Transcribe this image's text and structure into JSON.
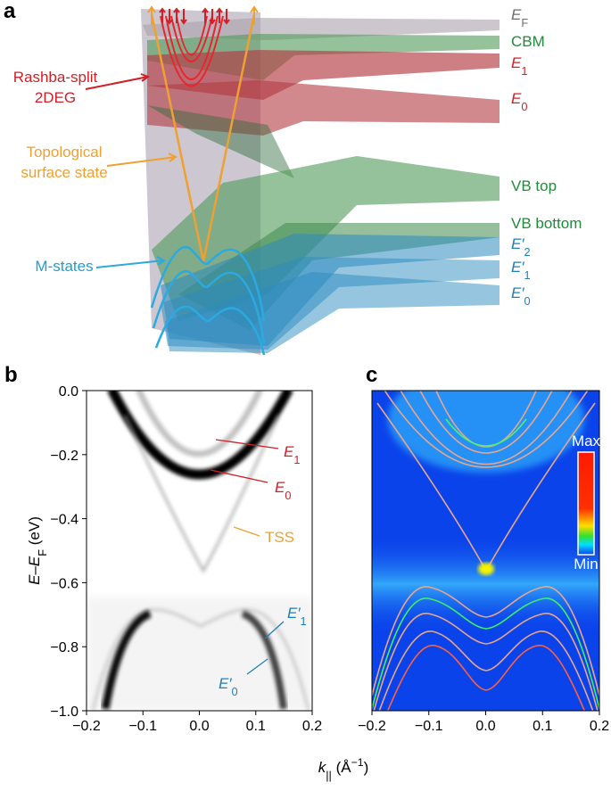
{
  "panel_a": {
    "letter": "a",
    "right_labels": [
      {
        "segments": [
          {
            "italic": "E"
          },
          {
            "sub": "F"
          }
        ],
        "color": "#6e6e6e"
      },
      {
        "segments": [
          {
            "text": "CBM"
          }
        ],
        "color": "#1e8c3a"
      },
      {
        "segments": [
          {
            "italic": "E"
          },
          {
            "sub": "1"
          }
        ],
        "color": "#d21f26"
      },
      {
        "segments": [
          {
            "italic": "E"
          },
          {
            "sub": "0"
          }
        ],
        "color": "#d21f26"
      },
      {
        "segments": [
          {
            "text": "VB top"
          }
        ],
        "color": "#1e8c3a"
      },
      {
        "segments": [
          {
            "text": "VB bottom"
          }
        ],
        "color": "#1e8c3a"
      },
      {
        "segments": [
          {
            "italic": "E′"
          },
          {
            "sub": "2"
          }
        ],
        "color": "#1f7fb8"
      },
      {
        "segments": [
          {
            "italic": "E′"
          },
          {
            "sub": "1"
          }
        ],
        "color": "#1f7fb8"
      },
      {
        "segments": [
          {
            "italic": "E′"
          },
          {
            "sub": "0"
          }
        ],
        "color": "#1f7fb8"
      }
    ],
    "left_labels": [
      {
        "lines": [
          "Rashba-split",
          "2DEG"
        ],
        "color": "#d21f26"
      },
      {
        "lines": [
          "Topological",
          "surface state"
        ],
        "color": "#f0a030"
      },
      {
        "lines": [
          "M-states"
        ],
        "color": "#1f9fd0"
      }
    ]
  },
  "chart_data": [
    {
      "type": "arpes",
      "panel": "b",
      "ylabel": [
        {
          "italic": "E"
        },
        {
          "text": "–"
        },
        {
          "italic": "E"
        },
        {
          "sub": "F"
        },
        {
          "text": " (eV)"
        }
      ],
      "xlim": [
        -0.2,
        0.2
      ],
      "ylim": [
        -1.0,
        0.0
      ],
      "xticks": [
        {
          "value": -0.2,
          "label": "−0.2"
        },
        {
          "value": -0.1,
          "label": "−0.1"
        },
        {
          "value": 0.0,
          "label": "0.0"
        },
        {
          "value": 0.1,
          "label": "0.1"
        },
        {
          "value": 0.2,
          "label": "0.2"
        }
      ],
      "yticks": [
        {
          "value": 0.0,
          "label": "0.0"
        },
        {
          "value": -0.2,
          "label": "−0.2"
        },
        {
          "value": -0.4,
          "label": "−0.4"
        },
        {
          "value": -0.6,
          "label": "−0.6"
        },
        {
          "value": -0.8,
          "label": "−0.8"
        },
        {
          "value": -1.0,
          "label": "−1.0"
        }
      ],
      "annotations": [
        {
          "segments": [
            {
              "italic": "E"
            },
            {
              "sub": "1"
            }
          ],
          "color": "#d21f26"
        },
        {
          "segments": [
            {
              "italic": "E"
            },
            {
              "sub": "0"
            }
          ],
          "color": "#d21f26"
        },
        {
          "segments": [
            {
              "text": "TSS"
            }
          ],
          "color": "#f0a030"
        },
        {
          "segments": [
            {
              "italic": "E′"
            },
            {
              "sub": "1"
            }
          ],
          "color": "#1f7fb8"
        },
        {
          "segments": [
            {
              "italic": "E′"
            },
            {
              "sub": "0"
            }
          ],
          "color": "#1f7fb8"
        }
      ]
    },
    {
      "type": "calculation",
      "panel": "c",
      "xlim": [
        -0.2,
        0.2
      ],
      "ylim": [
        -1.0,
        0.0
      ],
      "xticks": [
        {
          "value": -0.2,
          "label": "−0.2"
        },
        {
          "value": -0.1,
          "label": "−0.1"
        },
        {
          "value": 0.0,
          "label": "0.0"
        },
        {
          "value": 0.1,
          "label": "0.1"
        },
        {
          "value": 0.2,
          "label": "0.2"
        }
      ],
      "colorbar": {
        "max": "Max",
        "min": "Min"
      }
    }
  ],
  "xlabel": [
    {
      "italic": "k"
    },
    {
      "sub": "||"
    },
    {
      "text": " (Å"
    },
    {
      "sup": "−1"
    },
    {
      "text": ")"
    }
  ]
}
